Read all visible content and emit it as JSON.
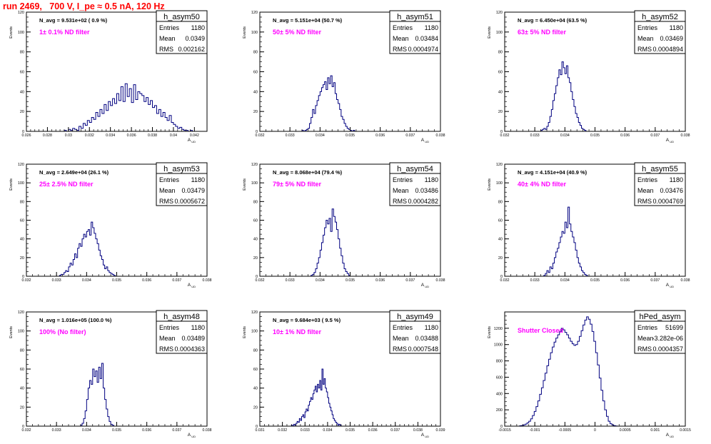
{
  "page_title": "run 2469,   700 V, I_pe ≈ 0.5 nA, 120 Hz",
  "colors": {
    "hist": "#000080",
    "annotation": "#ff00ff",
    "title": "#ff0000",
    "frame": "#000000"
  },
  "chart_data": [
    {
      "type": "histogram",
      "name": "h_asym50",
      "navg": "N_avg = 9.531e+02 ( 0.9 %)",
      "note": "1± 0.1% ND filter",
      "stats": {
        "entries": "1180",
        "mean": "0.0349",
        "rms": "0.002162"
      },
      "xlabel": "A_UD",
      "ylabel": "Events",
      "xlim": [
        0.026,
        0.0432
      ],
      "ylim": [
        0,
        120
      ],
      "xticks": [
        0.026,
        0.028,
        0.03,
        0.032,
        0.034,
        0.036,
        0.038,
        0.04,
        0.042
      ],
      "xticklabels": [
        "0.026",
        "0.028",
        "0.03",
        "0.032",
        "0.034",
        "0.036",
        "0.038",
        "0.04",
        "0.042"
      ],
      "yticks": [
        0,
        20,
        40,
        60,
        80,
        100,
        120
      ],
      "bin_start": 0.0296,
      "bin_width": 0.0002,
      "counts": [
        1,
        0,
        2,
        1,
        3,
        2,
        1,
        5,
        3,
        8,
        6,
        11,
        9,
        14,
        12,
        19,
        15,
        22,
        18,
        27,
        21,
        30,
        26,
        33,
        28,
        38,
        31,
        45,
        30,
        48,
        35,
        43,
        29,
        47,
        32,
        40,
        38,
        36,
        30,
        34,
        27,
        31,
        24,
        26,
        18,
        22,
        15,
        19,
        14,
        11,
        16,
        9,
        7,
        5,
        3,
        4,
        2,
        1,
        1,
        0,
        1
      ]
    },
    {
      "type": "histogram",
      "name": "h_asym51",
      "navg": "N_avg = 5.151e+04 (50.7 %)",
      "note": "50± 5% ND filter",
      "stats": {
        "entries": "1180",
        "mean": "0.03484",
        "rms": "0.0004974"
      },
      "xlabel": "A_UD",
      "ylabel": "Events",
      "xlim": [
        0.032,
        0.038
      ],
      "ylim": [
        0,
        120
      ],
      "xticks": [
        0.032,
        0.033,
        0.034,
        0.035,
        0.036,
        0.037,
        0.038
      ],
      "xticklabels": [
        "0.032",
        "0.033",
        "0.034",
        "0.035",
        "0.036",
        "0.037",
        "0.038"
      ],
      "yticks": [
        0,
        20,
        40,
        60,
        80,
        100,
        120
      ],
      "bin_start": 0.0334,
      "bin_width": 5e-05,
      "counts": [
        1,
        0,
        1,
        2,
        3,
        8,
        14,
        22,
        18,
        26,
        31,
        36,
        40,
        44,
        47,
        50,
        42,
        54,
        48,
        56,
        45,
        49,
        38,
        32,
        28,
        22,
        15,
        12,
        8,
        5,
        3,
        2,
        1,
        0,
        1
      ]
    },
    {
      "type": "histogram",
      "name": "h_asym52",
      "navg": "N_avg = 6.450e+04 (63.5 %)",
      "note": "63± 5% ND filter",
      "stats": {
        "entries": "1180",
        "mean": "0.03469",
        "rms": "0.0004894"
      },
      "xlabel": "A_UD",
      "ylabel": "Events",
      "xlim": [
        0.032,
        0.038
      ],
      "ylim": [
        0,
        120
      ],
      "xticks": [
        0.032,
        0.033,
        0.034,
        0.035,
        0.036,
        0.037,
        0.038
      ],
      "xticklabels": [
        "0.032",
        "0.033",
        "0.034",
        "0.035",
        "0.036",
        "0.037",
        "0.038"
      ],
      "yticks": [
        0,
        20,
        40,
        60,
        80,
        100,
        120
      ],
      "bin_start": 0.0332,
      "bin_width": 5e-05,
      "counts": [
        1,
        2,
        3,
        2,
        5,
        9,
        15,
        22,
        31,
        38,
        46,
        54,
        62,
        57,
        70,
        64,
        58,
        66,
        54,
        49,
        40,
        32,
        25,
        18,
        14,
        9,
        6,
        3,
        2,
        1
      ]
    },
    {
      "type": "histogram",
      "name": "h_asym53",
      "navg": "N_avg = 2.649e+04 (26.1 %)",
      "note": "25± 2.5% ND filter",
      "stats": {
        "entries": "1180",
        "mean": "0.03479",
        "rms": "0.0005672"
      },
      "xlabel": "A_UD",
      "ylabel": "Events",
      "xlim": [
        0.032,
        0.038
      ],
      "ylim": [
        0,
        120
      ],
      "xticks": [
        0.032,
        0.033,
        0.034,
        0.035,
        0.036,
        0.037,
        0.038
      ],
      "xticklabels": [
        "0.032",
        "0.033",
        "0.034",
        "0.035",
        "0.036",
        "0.037",
        "0.038"
      ],
      "yticks": [
        0,
        20,
        40,
        60,
        80,
        100,
        120
      ],
      "bin_start": 0.0331,
      "bin_width": 5e-05,
      "counts": [
        1,
        2,
        2,
        4,
        6,
        5,
        10,
        14,
        12,
        18,
        24,
        20,
        30,
        35,
        32,
        40,
        45,
        42,
        48,
        50,
        44,
        58,
        52,
        46,
        40,
        35,
        28,
        22,
        18,
        12,
        8,
        10,
        6,
        4,
        3,
        2,
        1
      ]
    },
    {
      "type": "histogram",
      "name": "h_asym54",
      "navg": "N_avg = 8.068e+04 (79.4 %)",
      "note": "79± 5% ND filter",
      "stats": {
        "entries": "1180",
        "mean": "0.03486",
        "rms": "0.0004282"
      },
      "xlabel": "A_UD",
      "ylabel": "Events",
      "xlim": [
        0.032,
        0.038
      ],
      "ylim": [
        0,
        120
      ],
      "xticks": [
        0.032,
        0.033,
        0.034,
        0.035,
        0.036,
        0.037,
        0.038
      ],
      "xticklabels": [
        "0.032",
        "0.033",
        "0.034",
        "0.035",
        "0.036",
        "0.037",
        "0.038"
      ],
      "yticks": [
        0,
        20,
        40,
        60,
        80,
        100,
        120
      ],
      "bin_start": 0.0337,
      "bin_width": 5e-05,
      "counts": [
        1,
        2,
        4,
        8,
        14,
        20,
        28,
        36,
        44,
        52,
        60,
        56,
        62,
        48,
        72,
        64,
        58,
        50,
        40,
        30,
        22,
        14,
        8,
        5,
        3,
        1
      ]
    },
    {
      "type": "histogram",
      "name": "h_asym55",
      "navg": "N_avg = 4.151e+04 (40.9 %)",
      "note": "40± 4% ND filter",
      "stats": {
        "entries": "1180",
        "mean": "0.03476",
        "rms": "0.0004769"
      },
      "xlabel": "A_UD",
      "ylabel": "Events",
      "xlim": [
        0.032,
        0.038
      ],
      "ylim": [
        0,
        120
      ],
      "xticks": [
        0.032,
        0.033,
        0.034,
        0.035,
        0.036,
        0.037,
        0.038
      ],
      "xticklabels": [
        "0.032",
        "0.033",
        "0.034",
        "0.035",
        "0.036",
        "0.037",
        "0.038"
      ],
      "yticks": [
        0,
        20,
        40,
        60,
        80,
        100,
        120
      ],
      "bin_start": 0.0333,
      "bin_width": 5e-05,
      "counts": [
        1,
        3,
        6,
        4,
        10,
        8,
        14,
        20,
        26,
        30,
        36,
        42,
        48,
        46,
        58,
        52,
        74,
        56,
        48,
        42,
        36,
        28,
        20,
        14,
        10,
        6,
        4,
        2,
        1
      ]
    },
    {
      "type": "histogram",
      "name": "h_asym48",
      "navg": "N_avg = 1.016e+05 (100.0 %)",
      "note": "100% (No filter)",
      "stats": {
        "entries": "1180",
        "mean": "0.03489",
        "rms": "0.0004363"
      },
      "xlabel": "A_UD",
      "ylabel": "Events",
      "xlim": [
        0.032,
        0.038
      ],
      "ylim": [
        0,
        120
      ],
      "xticks": [
        0.032,
        0.033,
        0.034,
        0.035,
        0.036,
        0.037,
        0.038
      ],
      "xticklabels": [
        "0.032",
        "0.033",
        "0.034",
        "0.035",
        "0.036",
        "0.037",
        "0.038"
      ],
      "yticks": [
        0,
        20,
        40,
        60,
        80,
        100,
        120
      ],
      "bin_start": 0.0338,
      "bin_width": 5e-05,
      "counts": [
        1,
        3,
        8,
        16,
        28,
        40,
        48,
        44,
        60,
        52,
        58,
        46,
        62,
        50,
        66,
        40,
        28,
        18,
        10,
        5,
        2,
        1
      ]
    },
    {
      "type": "histogram",
      "name": "h_asym49",
      "navg": "N_avg = 9.684e+03 ( 9.5 %)",
      "note": "10± 1% ND filter",
      "stats": {
        "entries": "1180",
        "mean": "0.03488",
        "rms": "0.0007548"
      },
      "xlabel": "A_UD",
      "ylabel": "Events",
      "xlim": [
        0.031,
        0.039
      ],
      "ylim": [
        0,
        120
      ],
      "xticks": [
        0.031,
        0.032,
        0.033,
        0.034,
        0.035,
        0.036,
        0.037,
        0.038,
        0.039
      ],
      "xticklabels": [
        "0.031",
        "0.032",
        "0.033",
        "0.034",
        "0.035",
        "0.036",
        "0.037",
        "0.038",
        "0.039"
      ],
      "yticks": [
        0,
        20,
        40,
        60,
        80,
        100,
        120
      ],
      "bin_start": 0.0324,
      "bin_width": 5e-05,
      "counts": [
        1,
        0,
        2,
        1,
        3,
        5,
        4,
        8,
        6,
        10,
        12,
        9,
        15,
        18,
        16,
        22,
        26,
        30,
        28,
        34,
        38,
        42,
        36,
        44,
        40,
        48,
        38,
        60,
        44,
        50,
        40,
        36,
        30,
        24,
        20,
        16,
        12,
        8,
        6,
        4,
        3,
        1,
        2,
        1
      ]
    },
    {
      "type": "histogram",
      "name": "hPed_asym",
      "navg": "",
      "note": "Shutter Closed",
      "stats": {
        "entries": "51699",
        "mean": "-3.282e-06",
        "rms": "0.0004357"
      },
      "xlabel": "A_UD",
      "ylabel": "Events",
      "xlim": [
        -0.0015,
        0.0015
      ],
      "ylim": [
        0,
        1400
      ],
      "xticks": [
        -0.0015,
        -0.001,
        -0.0005,
        0,
        0.0005,
        0.001,
        0.0015
      ],
      "xticklabels": [
        "-0.0015",
        "-0.001",
        "-0.0005",
        "0",
        "0.0005",
        "0.001",
        "0.0015"
      ],
      "yticks": [
        0,
        200,
        400,
        600,
        800,
        1000,
        1200
      ],
      "bin_start": -0.00125,
      "bin_width": 3e-05,
      "counts": [
        5,
        8,
        15,
        25,
        40,
        60,
        90,
        130,
        180,
        240,
        310,
        390,
        470,
        560,
        650,
        740,
        820,
        900,
        970,
        1030,
        1080,
        1120,
        1160,
        1200,
        1180,
        1150,
        1120,
        1080,
        1040,
        1010,
        990,
        1000,
        1040,
        1100,
        1170,
        1240,
        1300,
        1340,
        1310,
        1250,
        1160,
        1040,
        900,
        750,
        590,
        440,
        310,
        200,
        120,
        60,
        30,
        15,
        6,
        2
      ]
    }
  ]
}
